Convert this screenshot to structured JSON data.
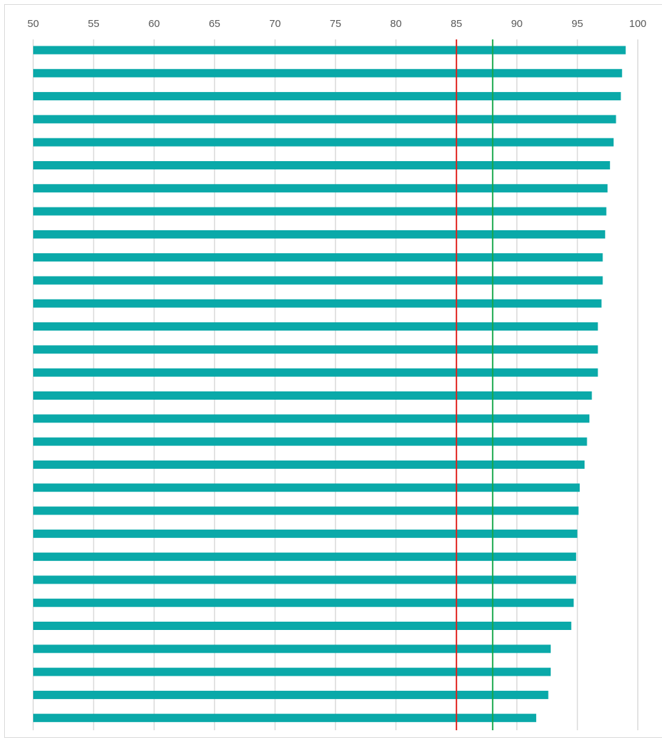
{
  "chart_data": {
    "type": "bar",
    "orientation": "horizontal",
    "x_ticks": [
      "50",
      "55",
      "60",
      "65",
      "70",
      "75",
      "80",
      "85",
      "90",
      "95",
      "100"
    ],
    "xlim": [
      50,
      100
    ],
    "grid": true,
    "values": [
      99.0,
      98.7,
      98.6,
      98.2,
      98.0,
      97.7,
      97.5,
      97.4,
      97.3,
      97.1,
      97.1,
      97.0,
      96.7,
      96.7,
      96.7,
      96.2,
      96.0,
      95.8,
      95.6,
      95.2,
      95.1,
      95.0,
      94.9,
      94.9,
      94.7,
      94.5,
      92.8,
      92.8,
      92.6,
      91.6
    ],
    "bar_color": "#0aa9a9",
    "reference_lines": [
      {
        "value": 85,
        "color": "#e0201b"
      },
      {
        "value": 88,
        "color": "#16a84a"
      }
    ]
  }
}
